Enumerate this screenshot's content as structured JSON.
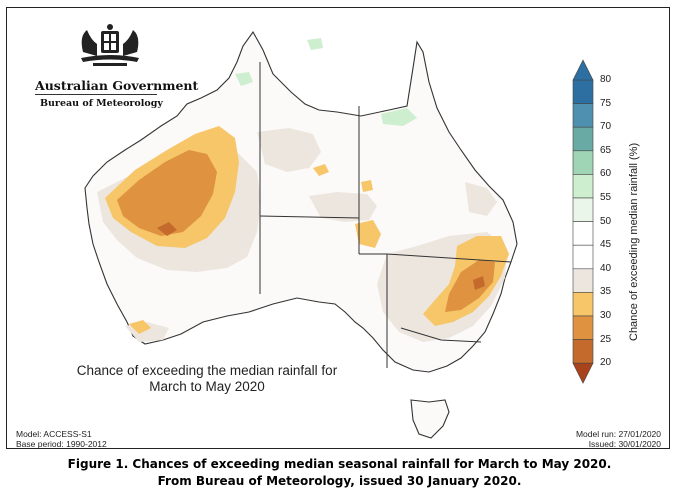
{
  "logo": {
    "government": "Australian Government",
    "agency": "Bureau of Meteorology"
  },
  "map_caption": {
    "line1": "Chance of exceeding the median rainfall for",
    "line2": "March to May 2020"
  },
  "model_info": {
    "model": "Model: ACCESS-S1",
    "base_period": "Base period: 1990-2012",
    "model_run": "Model run: 27/01/2020",
    "issued": "Issued: 30/01/2020"
  },
  "legend": {
    "title": "Chance of exceeding median rainfall (%)",
    "ticks": [
      "80",
      "75",
      "70",
      "65",
      "60",
      "55",
      "50",
      "45",
      "40",
      "35",
      "30",
      "25",
      "20"
    ],
    "colors": [
      "#2c6fa0",
      "#4f8fb0",
      "#6aaaa5",
      "#9fd4b4",
      "#cdeecf",
      "#eaf6ea",
      "#ffffff",
      "#ffffff",
      "#ece6df",
      "#f6c668",
      "#df9240",
      "#c46a2c",
      "#a8431c"
    ]
  },
  "figure_caption": {
    "line1": "Figure 1. Chances of exceeding median seasonal rainfall for March to May 2020.",
    "line2": "From Bureau of Meteorology, issued 30 January 2020."
  }
}
